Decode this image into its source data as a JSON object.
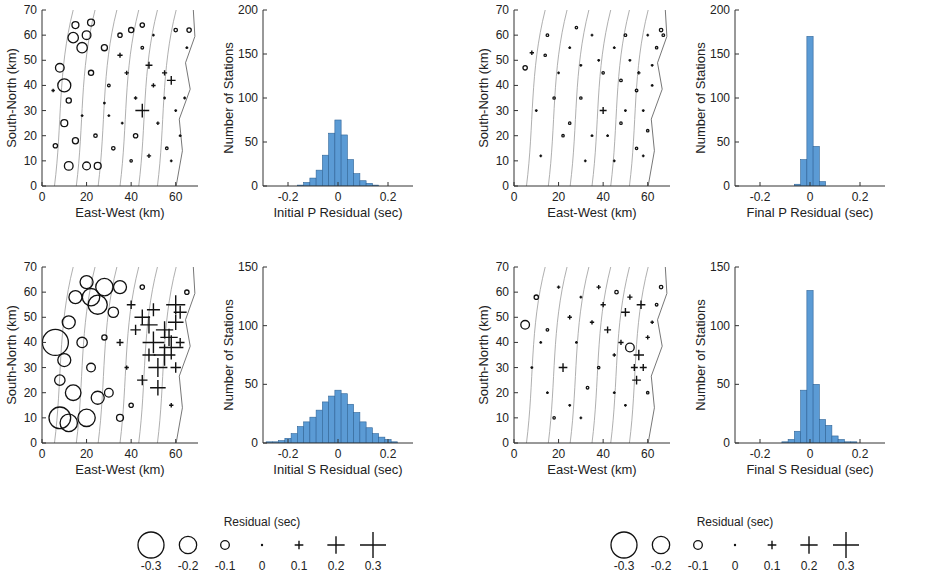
{
  "chart_data": [
    {
      "type": "scatter",
      "x_label": "East-West (km)",
      "y_label": "South-North (km)",
      "xlim": [
        0,
        70
      ],
      "ylim": [
        0,
        70
      ],
      "xticks": [
        0,
        20,
        40,
        60
      ],
      "yticks": [
        0,
        10,
        20,
        30,
        40,
        50,
        60,
        70
      ],
      "x": [
        8,
        10,
        12,
        14,
        15,
        18,
        20,
        22,
        10,
        12,
        15,
        22,
        25,
        28,
        30,
        18,
        24,
        6,
        20,
        35,
        36,
        32,
        40,
        38,
        42,
        45,
        48,
        50,
        45,
        55,
        58,
        52,
        60,
        62,
        56,
        65,
        60,
        66,
        48,
        42,
        30,
        28,
        40,
        50,
        35,
        58,
        64,
        55,
        5,
        45
      ],
      "values": [
        47,
        40,
        8,
        59,
        64,
        55,
        60,
        65,
        25,
        34,
        18,
        45,
        8,
        55,
        40,
        28,
        20,
        16,
        8,
        60,
        25,
        15,
        10,
        45,
        35,
        30,
        48,
        40,
        55,
        45,
        42,
        25,
        30,
        20,
        15,
        55,
        62,
        62,
        12,
        20,
        28,
        33,
        62,
        60,
        52,
        10,
        35,
        35,
        38,
        64
      ],
      "residuals": [
        -0.1,
        -0.15,
        -0.1,
        -0.12,
        -0.08,
        -0.12,
        -0.1,
        -0.08,
        -0.08,
        -0.06,
        -0.07,
        -0.06,
        -0.08,
        -0.07,
        -0.03,
        0.02,
        -0.04,
        -0.05,
        -0.09,
        -0.05,
        0.03,
        -0.04,
        -0.02,
        0.05,
        0.04,
        0.16,
        0.08,
        0.05,
        -0.03,
        0.06,
        0.1,
        0.04,
        0.03,
        0.02,
        -0.03,
        0.02,
        -0.04,
        -0.05,
        0.05,
        -0.05,
        0.02,
        0.01,
        -0.06,
        0.03,
        0.06,
        0.01,
        0.02,
        0.03,
        0.04,
        -0.05
      ]
    },
    {
      "type": "histogram",
      "x_label": "Initial P Residual (sec)",
      "y_label": "Number of Stations",
      "color": "#5b9bd5",
      "xlim": [
        -0.3,
        0.3
      ],
      "ylim": [
        0,
        200
      ],
      "xticks": [
        -0.2,
        0,
        0.2
      ],
      "yticks": [
        0,
        50,
        100,
        150,
        200
      ],
      "bins": [
        -0.3125,
        -0.2875,
        -0.2625,
        -0.2375,
        -0.2125,
        -0.1875,
        -0.1625,
        -0.1375,
        -0.1125,
        -0.0875,
        -0.0625,
        -0.0375,
        -0.0125,
        0.0125,
        0.0375,
        0.0625,
        0.0875,
        0.1125,
        0.1375,
        0.1625,
        0.1875,
        0.2125,
        0.2375,
        0.2625,
        0.2875,
        0.3125
      ],
      "counts": [
        0,
        0,
        0,
        0,
        0,
        0,
        1,
        4,
        9,
        18,
        35,
        60,
        75,
        58,
        30,
        14,
        6,
        3,
        1,
        0,
        0,
        0,
        0,
        0,
        0
      ]
    },
    {
      "type": "scatter",
      "x_label": "East-West (km)",
      "y_label": "South-North (km)",
      "xlim": [
        0,
        70
      ],
      "ylim": [
        0,
        70
      ],
      "xticks": [
        0,
        20,
        40,
        60
      ],
      "yticks": [
        0,
        10,
        20,
        30,
        40,
        50,
        60,
        70
      ],
      "x": [
        5,
        8,
        10,
        15,
        20,
        22,
        25,
        30,
        32,
        35,
        40,
        40,
        42,
        45,
        48,
        50,
        52,
        55,
        56,
        58,
        60,
        62,
        64,
        66,
        67,
        60,
        28,
        12,
        18,
        35,
        45,
        55,
        38,
        25,
        50,
        62,
        14,
        30,
        48,
        58
      ],
      "values": [
        47,
        53,
        30,
        60,
        45,
        20,
        55,
        35,
        10,
        60,
        30,
        45,
        20,
        55,
        42,
        30,
        50,
        38,
        45,
        30,
        22,
        40,
        55,
        62,
        60,
        60,
        63,
        12,
        35,
        20,
        10,
        15,
        50,
        25,
        60,
        48,
        52,
        48,
        25,
        12
      ],
      "residuals": [
        -0.05,
        0.05,
        0.02,
        -0.03,
        0.01,
        -0.02,
        0.02,
        -0.01,
        0.01,
        0.02,
        0.08,
        -0.02,
        0.01,
        0.03,
        -0.03,
        0.01,
        0.02,
        -0.03,
        0.04,
        0.02,
        -0.02,
        0.03,
        -0.02,
        -0.04,
        -0.03,
        0.02,
        -0.02,
        0.01,
        -0.02,
        0.01,
        0.02,
        -0.01,
        0.02,
        -0.01,
        -0.03,
        0.02,
        -0.02,
        0.01,
        -0.02,
        0.01
      ]
    },
    {
      "type": "histogram",
      "x_label": "Final P Residual (sec)",
      "y_label": "Number of Stations",
      "color": "#5b9bd5",
      "xlim": [
        -0.3,
        0.3
      ],
      "ylim": [
        0,
        200
      ],
      "xticks": [
        -0.2,
        0,
        0.2
      ],
      "yticks": [
        0,
        50,
        100,
        150,
        200
      ],
      "bins": [
        -0.3125,
        -0.2875,
        -0.2625,
        -0.2375,
        -0.2125,
        -0.1875,
        -0.1625,
        -0.1375,
        -0.1125,
        -0.0875,
        -0.0625,
        -0.0375,
        -0.0125,
        0.0125,
        0.0375,
        0.0625,
        0.0875,
        0.1125,
        0.1375,
        0.1625,
        0.1875,
        0.2125,
        0.2375,
        0.2625,
        0.2875,
        0.3125
      ],
      "counts": [
        0,
        0,
        0,
        0,
        0,
        0,
        0,
        0,
        0,
        0,
        2,
        30,
        170,
        45,
        5,
        0,
        0,
        0,
        0,
        0,
        0,
        0,
        0,
        0,
        0
      ]
    },
    {
      "type": "scatter",
      "x_label": "East-West (km)",
      "y_label": "South-North (km)",
      "xlim": [
        0,
        70
      ],
      "ylim": [
        0,
        70
      ],
      "xticks": [
        0,
        20,
        40,
        60
      ],
      "yticks": [
        0,
        10,
        20,
        30,
        40,
        50,
        60,
        70
      ],
      "x": [
        6,
        8,
        12,
        14,
        8,
        10,
        12,
        15,
        20,
        22,
        25,
        28,
        18,
        20,
        25,
        30,
        22,
        32,
        35,
        28,
        35,
        40,
        38,
        42,
        45,
        48,
        50,
        52,
        55,
        57,
        58,
        60,
        62,
        52,
        48,
        45,
        55,
        60,
        62,
        65,
        58,
        45,
        40,
        35,
        60,
        50
      ],
      "values": [
        40,
        10,
        8,
        20,
        25,
        33,
        48,
        58,
        64,
        58,
        55,
        62,
        40,
        10,
        18,
        20,
        30,
        52,
        62,
        42,
        10,
        15,
        30,
        45,
        50,
        47,
        53,
        30,
        35,
        42,
        38,
        48,
        52,
        22,
        35,
        25,
        45,
        30,
        40,
        60,
        15,
        62,
        55,
        40,
        55,
        40
      ],
      "residuals": [
        -0.3,
        -0.25,
        -0.2,
        -0.18,
        -0.12,
        -0.15,
        -0.15,
        -0.15,
        -0.15,
        -0.2,
        -0.22,
        -0.2,
        -0.12,
        -0.2,
        -0.15,
        -0.1,
        -0.1,
        -0.12,
        -0.15,
        -0.06,
        -0.08,
        -0.05,
        0.05,
        0.12,
        0.18,
        0.2,
        0.15,
        0.22,
        0.25,
        0.2,
        0.28,
        0.18,
        0.15,
        0.18,
        0.15,
        0.12,
        0.2,
        0.12,
        0.1,
        -0.05,
        0.05,
        -0.05,
        0.1,
        0.08,
        0.22,
        0.25
      ],
      "residual_legend": {
        "title": "Residual (sec)",
        "values": [
          -0.3,
          -0.2,
          -0.1,
          0,
          0.1,
          0.2,
          0.3
        ]
      }
    },
    {
      "type": "histogram",
      "x_label": "Initial S Residual (sec)",
      "y_label": "Number of Stations",
      "color": "#5b9bd5",
      "xlim": [
        -0.3,
        0.3
      ],
      "ylim": [
        0,
        150
      ],
      "xticks": [
        -0.2,
        0,
        0.2
      ],
      "yticks": [
        0,
        50,
        100,
        150
      ],
      "bins": [
        -0.3125,
        -0.2875,
        -0.2625,
        -0.2375,
        -0.2125,
        -0.1875,
        -0.1625,
        -0.1375,
        -0.1125,
        -0.0875,
        -0.0625,
        -0.0375,
        -0.0125,
        0.0125,
        0.0375,
        0.0625,
        0.0875,
        0.1125,
        0.1375,
        0.1625,
        0.1875,
        0.2125,
        0.2375,
        0.2625,
        0.2875,
        0.3125
      ],
      "counts": [
        0,
        1,
        1,
        2,
        4,
        8,
        14,
        18,
        22,
        28,
        35,
        40,
        45,
        42,
        33,
        26,
        18,
        13,
        8,
        5,
        3,
        1,
        0,
        0,
        0
      ]
    },
    {
      "type": "scatter",
      "x_label": "East-West (km)",
      "y_label": "South-North (km)",
      "xlim": [
        0,
        70
      ],
      "ylim": [
        0,
        70
      ],
      "xticks": [
        0,
        20,
        40,
        60
      ],
      "yticks": [
        0,
        10,
        20,
        30,
        40,
        50,
        60,
        70
      ],
      "x": [
        5,
        10,
        12,
        15,
        20,
        22,
        25,
        28,
        30,
        33,
        35,
        38,
        40,
        42,
        45,
        48,
        50,
        52,
        54,
        55,
        56,
        58,
        60,
        62,
        64,
        66,
        45,
        30,
        18,
        8,
        50,
        60,
        38,
        52,
        25,
        15,
        46,
        57
      ],
      "values": [
        47,
        58,
        40,
        20,
        62,
        30,
        50,
        40,
        58,
        22,
        48,
        30,
        55,
        45,
        35,
        40,
        52,
        38,
        30,
        25,
        35,
        30,
        42,
        48,
        55,
        62,
        20,
        10,
        10,
        30,
        15,
        20,
        62,
        58,
        15,
        45,
        60,
        55
      ],
      "residuals": [
        -0.1,
        -0.05,
        0.03,
        0.02,
        0.04,
        0.1,
        0.05,
        0.03,
        0.02,
        -0.03,
        0.05,
        -0.02,
        0.06,
        0.08,
        0.04,
        0.06,
        0.1,
        -0.1,
        0.08,
        0.1,
        0.12,
        0.08,
        0.05,
        0.04,
        -0.03,
        -0.04,
        0.02,
        0.01,
        -0.02,
        0.01,
        0.03,
        -0.02,
        0.05,
        0.06,
        0.02,
        -0.03,
        -0.04,
        0.1
      ],
      "residual_legend": {
        "title": "Residual (sec)",
        "values": [
          -0.3,
          -0.2,
          -0.1,
          0,
          0.1,
          0.2,
          0.3
        ]
      }
    },
    {
      "type": "histogram",
      "x_label": "Final S Residual (sec)",
      "y_label": "Number of Stations",
      "color": "#5b9bd5",
      "xlim": [
        -0.3,
        0.3
      ],
      "ylim": [
        0,
        150
      ],
      "xticks": [
        -0.2,
        0,
        0.2
      ],
      "yticks": [
        0,
        50,
        100,
        150
      ],
      "bins": [
        -0.3125,
        -0.2875,
        -0.2625,
        -0.2375,
        -0.2125,
        -0.1875,
        -0.1625,
        -0.1375,
        -0.1125,
        -0.0875,
        -0.0625,
        -0.0375,
        -0.0125,
        0.0125,
        0.0375,
        0.0625,
        0.0875,
        0.1125,
        0.1375,
        0.1625,
        0.1875,
        0.2125,
        0.2375,
        0.2625,
        0.2875,
        0.3125
      ],
      "counts": [
        0,
        0,
        0,
        0,
        0,
        0,
        0,
        0,
        1,
        3,
        10,
        45,
        130,
        50,
        20,
        15,
        6,
        3,
        1,
        1,
        0,
        0,
        0,
        0,
        0
      ]
    }
  ]
}
